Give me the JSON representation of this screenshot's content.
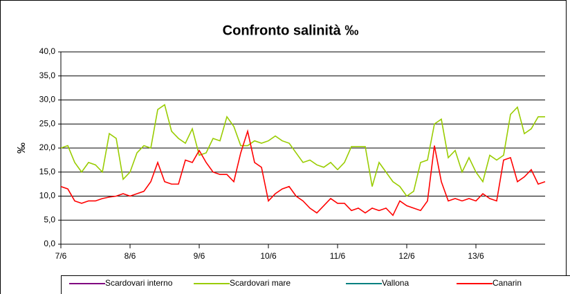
{
  "chart_data": {
    "type": "line",
    "title": "Confronto salinità ‰",
    "y_label": "‰",
    "x": [
      0,
      0.1,
      0.2,
      0.3,
      0.4,
      0.5,
      0.6,
      0.7,
      0.8,
      0.9,
      1,
      1.1,
      1.2,
      1.3,
      1.4,
      1.5,
      1.6,
      1.7,
      1.8,
      1.9,
      2,
      2.1,
      2.2,
      2.3,
      2.4,
      2.5,
      2.6,
      2.7,
      2.8,
      2.9,
      3,
      3.1,
      3.2,
      3.3,
      3.4,
      3.5,
      3.6,
      3.7,
      3.8,
      3.9,
      4,
      4.1,
      4.2,
      4.3,
      4.4,
      4.5,
      4.6,
      4.7,
      4.8,
      4.9,
      5,
      5.1,
      5.2,
      5.3,
      5.4,
      5.5,
      5.6,
      5.7,
      5.8,
      5.9,
      6,
      6.1,
      6.2,
      6.3,
      6.4,
      6.5,
      6.6,
      6.7,
      6.8,
      6.9,
      7
    ],
    "xlim": [
      0,
      7
    ],
    "xticks": [
      {
        "value": 0,
        "label": "7/6"
      },
      {
        "value": 1,
        "label": "8/6"
      },
      {
        "value": 2,
        "label": "9/6"
      },
      {
        "value": 3,
        "label": "10/6"
      },
      {
        "value": 4,
        "label": "11/6"
      },
      {
        "value": 5,
        "label": "12/6"
      },
      {
        "value": 6,
        "label": "13/6"
      }
    ],
    "ylim": [
      0,
      40
    ],
    "yticks": [
      {
        "value": 0,
        "label": "0,0"
      },
      {
        "value": 5,
        "label": "5,0"
      },
      {
        "value": 10,
        "label": "10,0"
      },
      {
        "value": 15,
        "label": "15,0"
      },
      {
        "value": 20,
        "label": "20,0"
      },
      {
        "value": 25,
        "label": "25,0"
      },
      {
        "value": 30,
        "label": "30,0"
      },
      {
        "value": 35,
        "label": "35,0"
      },
      {
        "value": 40,
        "label": "40,0"
      }
    ],
    "grid": true,
    "series": [
      {
        "name": "Scardovari interno",
        "color": "#800080",
        "values": [
          null,
          null,
          null,
          null,
          null,
          null,
          null,
          null,
          null,
          null,
          null,
          null,
          null,
          null,
          null,
          null,
          null,
          null,
          null,
          null,
          null,
          null,
          null,
          null,
          null,
          null,
          null,
          null,
          null,
          null,
          null,
          null,
          null,
          null,
          null,
          null,
          null,
          null,
          null,
          null,
          null,
          null,
          null,
          null,
          null,
          null,
          null,
          null,
          null,
          null,
          null,
          null,
          null,
          null,
          null,
          null,
          null,
          null,
          null,
          null,
          null,
          null,
          null,
          null,
          null,
          null,
          null,
          null,
          null,
          null,
          null
        ]
      },
      {
        "name": "Scardovari mare",
        "color": "#99cc00",
        "values": [
          20,
          20.5,
          17,
          15,
          17,
          16.5,
          15,
          23,
          22,
          13.5,
          15,
          19,
          20.5,
          20,
          28,
          29,
          23.5,
          22,
          21,
          24,
          18.5,
          19,
          22,
          21.5,
          26.5,
          24.5,
          20.5,
          20.5,
          21.5,
          21,
          21.5,
          22.5,
          21.5,
          21,
          19,
          17,
          17.5,
          16.5,
          16,
          17,
          15.5,
          17,
          20.3,
          20.3,
          20.3,
          12,
          17,
          15,
          13,
          12,
          10,
          11,
          17,
          17.5,
          25,
          26,
          18,
          19.5,
          15,
          18,
          15,
          13,
          18.5,
          17.5,
          18.5,
          27,
          28.5,
          23,
          24,
          26.5,
          26.5
        ]
      },
      {
        "name": "Vallona",
        "color": "#008080",
        "values": [
          null,
          null,
          null,
          null,
          null,
          null,
          null,
          null,
          null,
          null,
          null,
          null,
          null,
          null,
          null,
          null,
          null,
          null,
          null,
          null,
          null,
          null,
          null,
          null,
          null,
          null,
          null,
          null,
          null,
          null,
          null,
          null,
          null,
          null,
          null,
          null,
          null,
          null,
          null,
          null,
          null,
          null,
          null,
          null,
          null,
          null,
          null,
          null,
          null,
          null,
          null,
          null,
          null,
          null,
          null,
          null,
          null,
          null,
          null,
          null,
          null,
          null,
          null,
          null,
          null,
          null,
          null,
          null,
          null,
          null,
          null
        ]
      },
      {
        "name": "Canarin",
        "color": "#ff0000",
        "values": [
          12,
          11.5,
          9,
          8.5,
          9,
          9,
          9.5,
          9.8,
          10,
          10.5,
          10,
          10.5,
          11,
          13,
          17,
          13,
          12.5,
          12.5,
          17.5,
          17,
          19.5,
          17,
          15,
          14.5,
          14.5,
          13,
          19,
          23.5,
          17,
          16,
          9,
          10.5,
          11.5,
          12,
          10,
          9,
          7.5,
          6.5,
          8,
          9.5,
          8.5,
          8.5,
          7,
          7.5,
          6.5,
          7.5,
          7,
          7.5,
          6,
          9,
          8,
          7.5,
          7,
          9,
          20.5,
          13,
          9,
          9.5,
          9,
          9.5,
          9,
          10.5,
          9.5,
          9,
          17.5,
          18,
          13,
          14,
          15.5,
          12.5,
          13
        ]
      }
    ]
  }
}
